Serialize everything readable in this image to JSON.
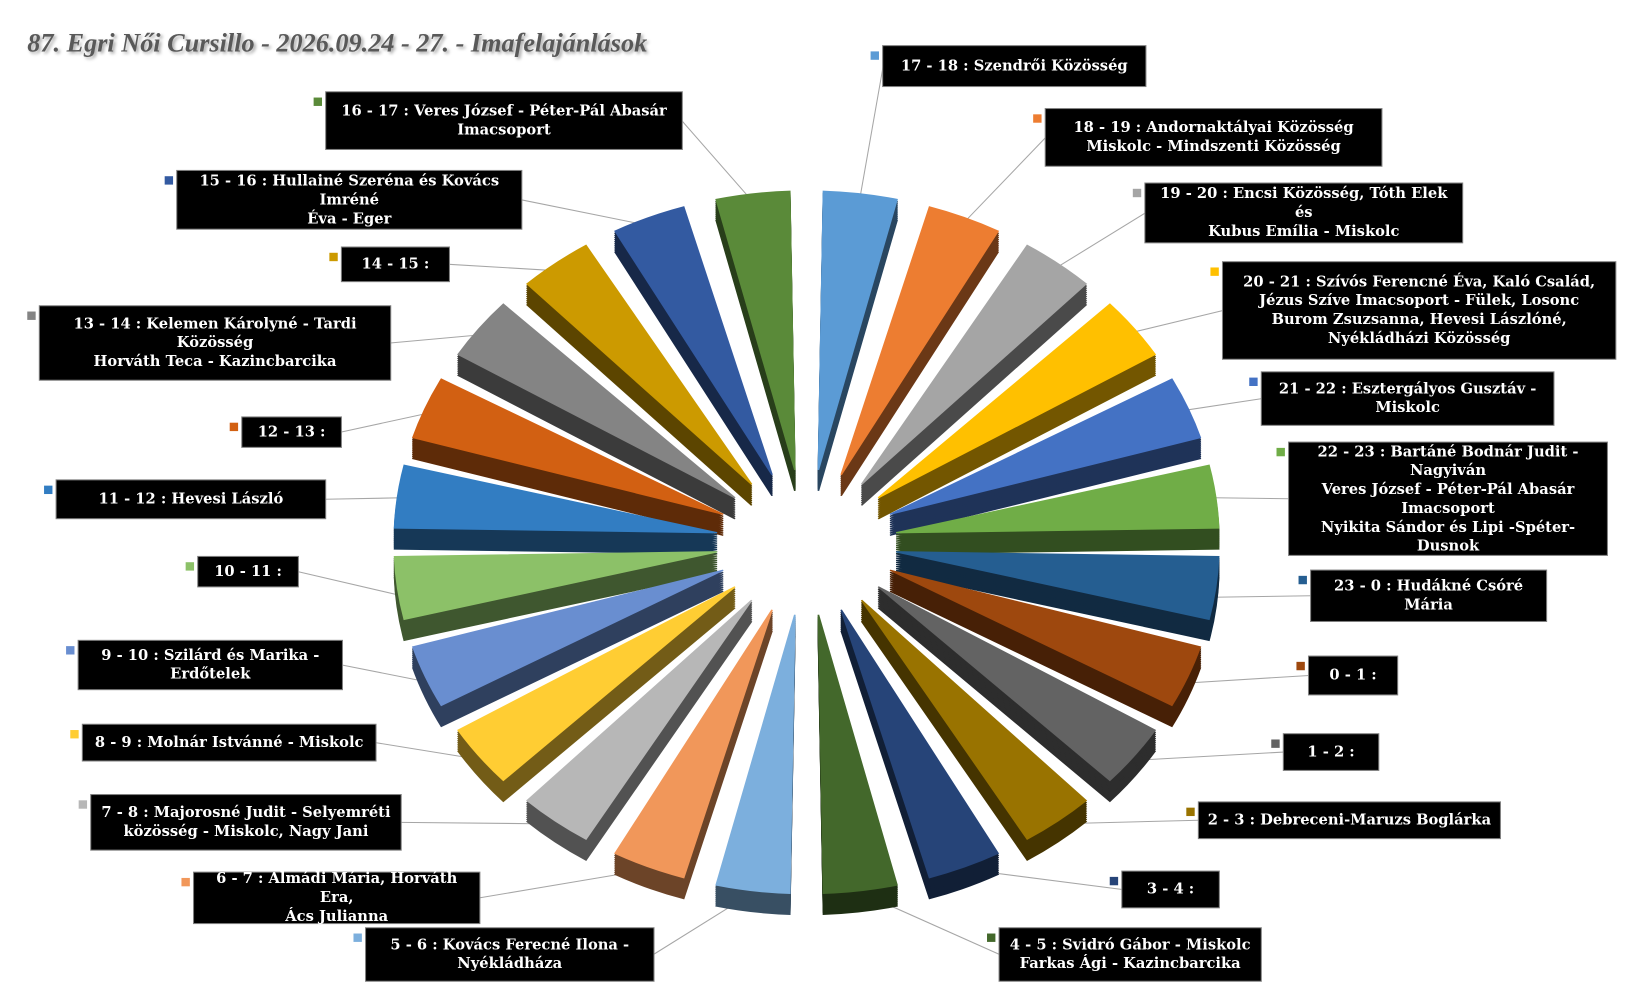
{
  "chart_data": {
    "type": "doughnut",
    "title": "87. Egri Női Cursillo - 2026.09.24 - 27. - Imafelajánlások",
    "categories": [
      "17 - 18 : Szendrői Közösség",
      "18 - 19 : Andornaktályai Közösség\nMiskolc - Mindszenti Közösség",
      "19 - 20 : Encsi Közösség, Tóth Elek és\nKubus Emília - Miskolc",
      "20 - 21 : Szívós Ferencné Éva, Kaló Család,\nJézus Szíve Imacsoport - Fülek, Losonc\nBurom Zsuzsanna, Hevesi Lászlóné,\nNyékládházi Közösség",
      "21 - 22 : Esztergályos Gusztáv -\nMiskolc",
      "22 - 23 : Bartáné Bodnár Judit - Nagyiván\nVeres József - Péter-Pál Abasár\nImacsoport\nNyikita Sándor és Lipi -Spéter-Dusnok",
      "23 - 0 : Hudákné Csóré Mária",
      "0 - 1 :",
      "1 - 2 :",
      "2 - 3 : Debreceni-Maruzs Boglárka",
      "3 - 4 :",
      "4 - 5 : Svidró Gábor - Miskolc\nFarkas Ági - Kazincbarcika",
      "5 - 6 : Kovács Ferecné Ilona -\nNyékládháza",
      "6 - 7 : Almádi Mária, Horváth Era,\nÁcs Julianna",
      "7 - 8 : Majorosné Judit - Selyemréti\nközösség - Miskolc, Nagy Jani",
      "8 - 9 : Molnár Istvánné - Miskolc",
      "9 - 10 : Szilárd és Marika -\nErdőtelek",
      "10 - 11 :",
      "11 - 12 : Hevesi László",
      "12 - 13 :",
      "13 - 14 : Kelemen Károlyné - Tardi Közösség\nHorváth Teca - Kazincbarcika",
      "14 - 15 :",
      "15 - 16 : Hullainé Szeréna és Kovács Imréné\nÉva - Eger",
      "16 - 17 : Veres József - Péter-Pál Abasár\nImacsoport"
    ],
    "values": [
      1,
      1,
      1,
      1,
      1,
      1,
      1,
      1,
      1,
      1,
      1,
      1,
      1,
      1,
      1,
      1,
      1,
      1,
      1,
      1,
      1,
      1,
      1,
      1
    ],
    "colors": [
      "#5b9bd5",
      "#ed7d31",
      "#a5a5a5",
      "#ffc000",
      "#4472c4",
      "#70ad47",
      "#255e91",
      "#9e480e",
      "#636363",
      "#997300",
      "#264478",
      "#43682b",
      "#7cafdd",
      "#f1975a",
      "#b7b7b7",
      "#ffcd33",
      "#698ed0",
      "#8cc168",
      "#327dc2",
      "#d26012",
      "#848484",
      "#cc9a00",
      "#335aa1",
      "#5a8a39"
    ]
  }
}
